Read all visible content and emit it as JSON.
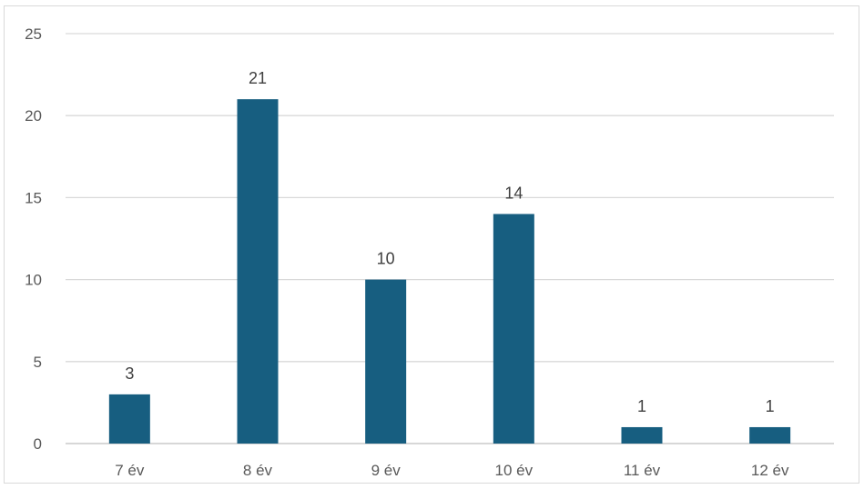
{
  "chart_data": {
    "type": "bar",
    "title": "",
    "xlabel": "",
    "ylabel": "",
    "categories": [
      "7 év",
      "8 év",
      "9 év",
      "10 év",
      "11 év",
      "12 év"
    ],
    "values": [
      3,
      21,
      10,
      14,
      1,
      1
    ],
    "ylim": [
      0,
      25
    ],
    "yticks": [
      0,
      5,
      10,
      15,
      20,
      25
    ],
    "grid": true,
    "legend": "none",
    "data_labels": true,
    "bar_color": "#175e80"
  }
}
